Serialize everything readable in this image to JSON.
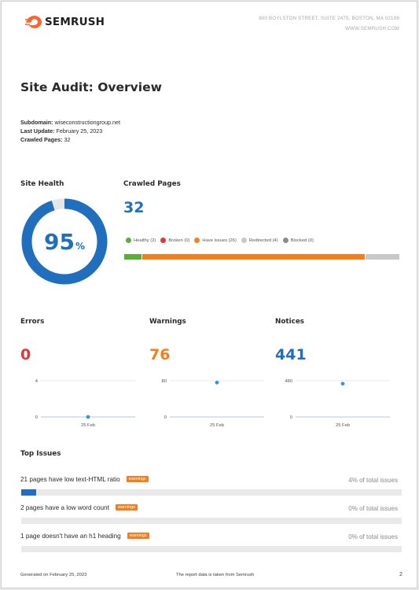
{
  "header": {
    "brand": "SEMRUSH",
    "address": "800 BOYLSTON STREET, SUITE 2475, BOSTON, MA 02199",
    "website": "WWW.SEMRUSH.COM"
  },
  "title": "Site Audit: Overview",
  "meta": {
    "subdomain_label": "Subdomain:",
    "subdomain": "wiseconstructiongroup.net",
    "last_update_label": "Last Update:",
    "last_update": "February 25, 2023",
    "crawled_label": "Crawled Pages:",
    "crawled": "32"
  },
  "site_health": {
    "heading": "Site Health",
    "value": "95",
    "unit": "%",
    "fraction": 0.95,
    "color": "#1f6fbe"
  },
  "crawled_pages": {
    "heading": "Crawled Pages",
    "total": "32",
    "legend": [
      {
        "label": "Healthy (2)",
        "count": 2,
        "color": "#5aae3b"
      },
      {
        "label": "Broken (0)",
        "count": 0,
        "color": "#e2353a"
      },
      {
        "label": "Have issues (26)",
        "count": 26,
        "color": "#f0801e"
      },
      {
        "label": "Redirected (4)",
        "count": 4,
        "color": "#c9c9c9"
      },
      {
        "label": "Blocked (0)",
        "count": 0,
        "color": "#8b8b8b"
      }
    ]
  },
  "chart_data": [
    {
      "type": "scatter",
      "title": "Errors",
      "value": "0",
      "color": "#e2353a",
      "x": [
        "25 Feb"
      ],
      "y": [
        0
      ],
      "ylim": [
        0,
        4
      ],
      "yticks": [
        "4",
        "0"
      ]
    },
    {
      "type": "scatter",
      "title": "Warnings",
      "value": "76",
      "color": "#f0801e",
      "x": [
        "25 Feb"
      ],
      "y": [
        76
      ],
      "ylim": [
        0,
        80
      ],
      "yticks": [
        "80",
        "0"
      ]
    },
    {
      "type": "scatter",
      "title": "Notices",
      "value": "441",
      "color": "#1f6fbe",
      "x": [
        "25 Feb"
      ],
      "y": [
        441
      ],
      "ylim": [
        0,
        480
      ],
      "yticks": [
        "480",
        "0"
      ]
    }
  ],
  "top_issues": {
    "heading": "Top Issues",
    "items": [
      {
        "text": "21 pages have low text-HTML ratio",
        "badge": "warnings",
        "pct": "4% of total issues",
        "fraction": 0.04
      },
      {
        "text": "2 pages have a low word count",
        "badge": "warnings",
        "pct": "0% of total issues",
        "fraction": 0
      },
      {
        "text": "1 page doesn't have an h1 heading",
        "badge": "warnings",
        "pct": "0% of total issues",
        "fraction": 0
      }
    ]
  },
  "footer": {
    "generated": "Generated on February 25, 2023",
    "source": "The report data is taken from Semrush",
    "page": "2"
  }
}
